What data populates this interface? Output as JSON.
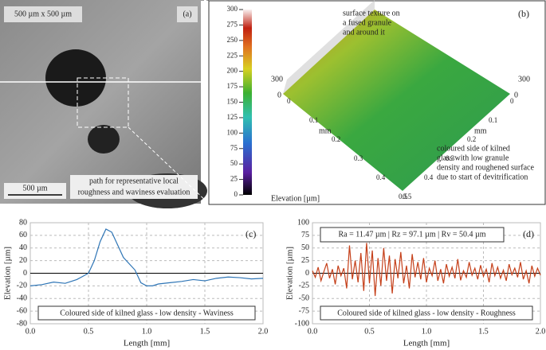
{
  "panel_a": {
    "label": "(a)",
    "scale_text": "500 µm  x 500 µm",
    "scalebar": "500 µm",
    "caption": [
      "path for representative local",
      "roughness and waviness evaluation"
    ]
  },
  "panel_b": {
    "label": "(b)",
    "colorbar_label": "Elevation [µm]",
    "colorbar_ticks": [
      0,
      25,
      50,
      75,
      100,
      125,
      150,
      175,
      200,
      225,
      250,
      275,
      300
    ],
    "annotation_top": [
      "surface texture on",
      "a fused granule",
      "and around it"
    ],
    "annotation_bottom": [
      "coloured side of kilned",
      "glass with low granule",
      "density and roughened surface",
      "due to start of devitrification"
    ],
    "z_left": [
      "300",
      "0"
    ],
    "z_right": [
      "300",
      "0"
    ],
    "axis_left": [
      "0",
      "0.1",
      "0.2",
      "0.3",
      "0.4",
      "0.5"
    ],
    "axis_right": [
      "0",
      "0.1",
      "0.2",
      "0.3",
      "0.4",
      "0.5"
    ],
    "axis_unit": [
      "mm",
      "mm"
    ]
  },
  "chart_data": [
    {
      "type": "line",
      "panel_label": "(c)",
      "xlabel": "Length [mm]",
      "ylabel": "Elevation [µm]",
      "x": [
        0,
        0.1,
        0.2,
        0.3,
        0.4,
        0.45,
        0.5,
        0.55,
        0.6,
        0.65,
        0.7,
        0.75,
        0.8,
        0.9,
        0.95,
        1.0,
        1.05,
        1.1,
        1.2,
        1.3,
        1.4,
        1.5,
        1.6,
        1.7,
        1.8,
        1.9,
        2.0
      ],
      "series": [
        {
          "name": "Coloured side of kilned glass - low density - Waviness",
          "color": "#2e75b6",
          "values": [
            -20,
            -18,
            -14,
            -16,
            -10,
            -5,
            0,
            20,
            50,
            70,
            65,
            45,
            25,
            5,
            -15,
            -20,
            -20,
            -17,
            -15,
            -13,
            -10,
            -12,
            -8,
            -6,
            -7,
            -9,
            -8
          ]
        }
      ],
      "xlim": [
        0,
        2
      ],
      "xticks": [
        {
          "value": 0,
          "label": "0.0"
        },
        0.5,
        {
          "value": 1,
          "label": "1.0"
        },
        1.5,
        {
          "value": 2,
          "label": "2.0"
        }
      ],
      "ylim": [
        -80,
        80
      ],
      "yticks": [
        -80,
        -60,
        -40,
        -20,
        0,
        20,
        40,
        60,
        80
      ],
      "grid": true
    },
    {
      "type": "line",
      "panel_label": "(d)",
      "xlabel": "Length [mm]",
      "ylabel": "Elevation [µm]",
      "annotation": "Ra = 11.47 µm  |  Rz = 97.1 µm  |  Rv = 50.4 µm",
      "x": [
        0,
        0.025,
        0.05,
        0.075,
        0.1,
        0.125,
        0.15,
        0.175,
        0.2,
        0.225,
        0.25,
        0.275,
        0.3,
        0.325,
        0.35,
        0.375,
        0.4,
        0.425,
        0.45,
        0.475,
        0.5,
        0.525,
        0.55,
        0.575,
        0.6,
        0.625,
        0.65,
        0.675,
        0.7,
        0.725,
        0.75,
        0.775,
        0.8,
        0.825,
        0.85,
        0.875,
        0.9,
        0.925,
        0.95,
        0.975,
        1,
        1.025,
        1.05,
        1.075,
        1.1,
        1.125,
        1.15,
        1.175,
        1.2,
        1.225,
        1.25,
        1.275,
        1.3,
        1.325,
        1.35,
        1.375,
        1.4,
        1.425,
        1.45,
        1.475,
        1.5,
        1.525,
        1.55,
        1.575,
        1.6,
        1.625,
        1.65,
        1.675,
        1.7,
        1.725,
        1.75,
        1.775,
        1.8,
        1.825,
        1.85,
        1.875,
        1.9,
        1.925,
        1.95,
        1.975,
        2
      ],
      "series": [
        {
          "name": "Coloured side of kilned glass - low density - Roughness",
          "color": "#c5401a",
          "values": [
            5,
            -8,
            12,
            -15,
            3,
            20,
            -10,
            8,
            -22,
            15,
            -5,
            10,
            -30,
            55,
            -12,
            25,
            -18,
            40,
            -35,
            60,
            -20,
            45,
            -45,
            30,
            -25,
            50,
            -15,
            35,
            -40,
            28,
            -10,
            42,
            -20,
            15,
            -30,
            38,
            -8,
            22,
            -12,
            30,
            -18,
            10,
            -5,
            25,
            -15,
            8,
            -20,
            18,
            -6,
            12,
            -10,
            28,
            -14,
            5,
            -8,
            22,
            -4,
            10,
            -12,
            16,
            -6,
            8,
            -18,
            20,
            -5,
            12,
            -10,
            6,
            -15,
            18,
            -3,
            10,
            -8,
            22,
            -12,
            5,
            -20,
            15,
            -6,
            10,
            -4
          ]
        }
      ],
      "xlim": [
        0,
        2
      ],
      "xticks": [
        {
          "value": 0,
          "label": "0.0"
        },
        0.5,
        {
          "value": 1,
          "label": "1.0"
        },
        1.5,
        {
          "value": 2,
          "label": "2.0"
        }
      ],
      "ylim": [
        -100,
        100
      ],
      "yticks": [
        -100,
        -75,
        -50,
        -25,
        0,
        25,
        50,
        75,
        100
      ],
      "grid": true
    }
  ]
}
